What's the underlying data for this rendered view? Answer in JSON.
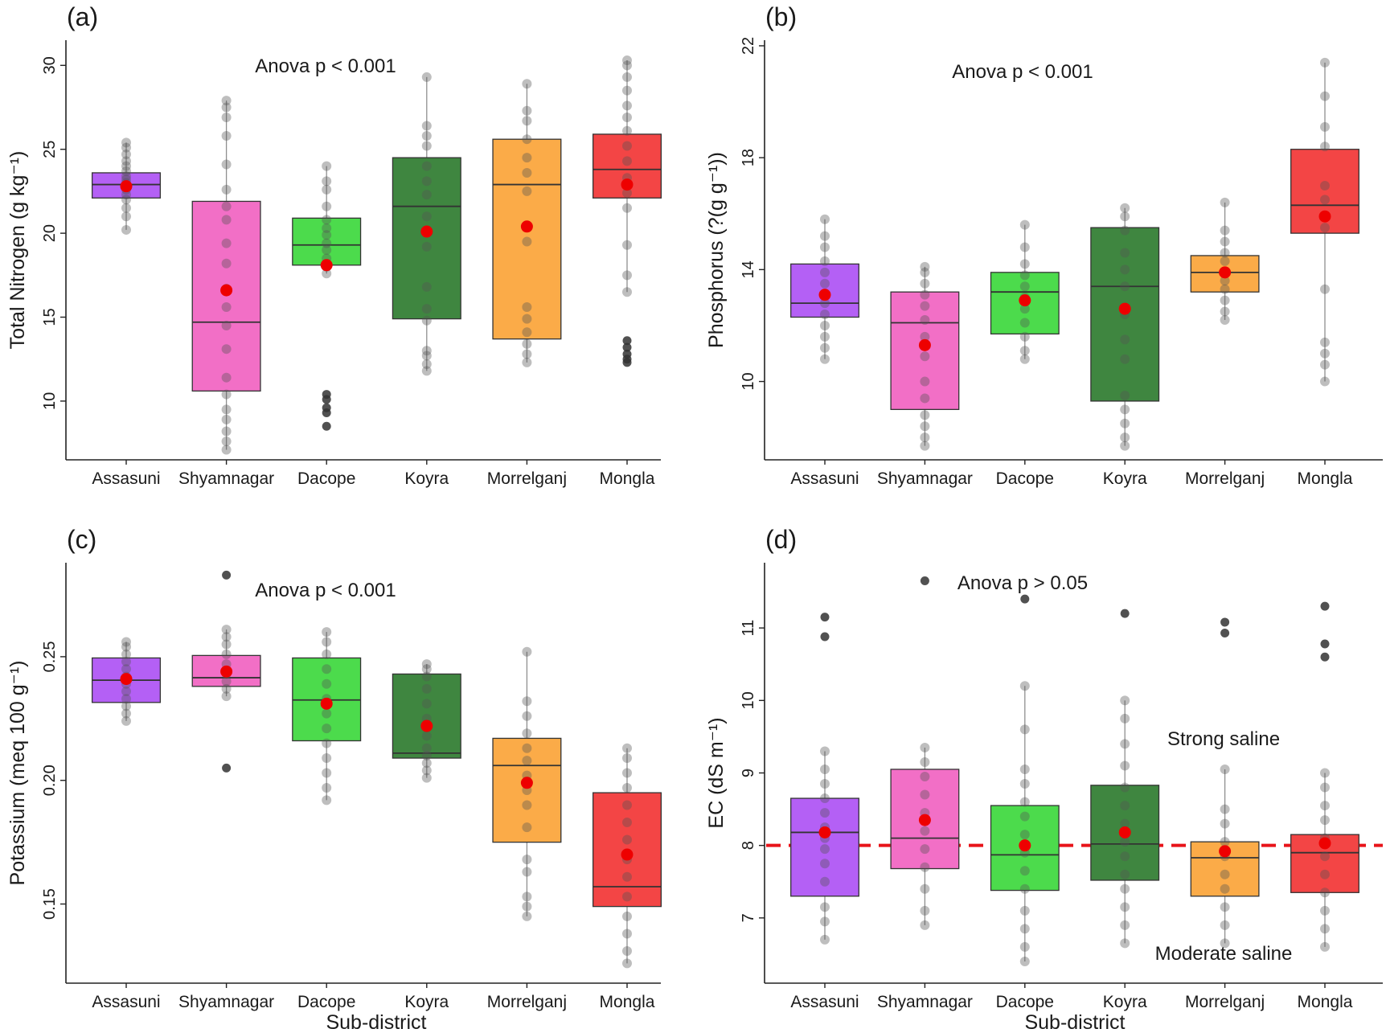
{
  "figure": {
    "xlabel": "Sub-district"
  },
  "chart_data": [
    {
      "type": "box",
      "panel_label": "(a)",
      "ylabel": "Total Nitrogen (g kg⁻¹)",
      "annotation": "Anova p < 0.001",
      "categories": [
        "Assasuni",
        "Shyamnagar",
        "Dacope",
        "Koyra",
        "Morrelganj",
        "Mongla"
      ],
      "colors": [
        "#b460f5",
        "#f26fc6",
        "#4cdb4c",
        "#3f8640",
        "#fbab48",
        "#f34545"
      ],
      "ylim": [
        6.5,
        31.5
      ],
      "yticks": [
        10,
        15,
        20,
        25,
        30
      ],
      "boxes": [
        {
          "q1": 22.1,
          "median": 22.9,
          "q3": 23.6,
          "whisker_low": 20.2,
          "whisker_high": 25.4,
          "mean": 22.8
        },
        {
          "q1": 10.6,
          "median": 14.7,
          "q3": 21.9,
          "whisker_low": 7.1,
          "whisker_high": 27.9,
          "mean": 16.6
        },
        {
          "q1": 18.1,
          "median": 19.3,
          "q3": 20.9,
          "whisker_low": 17.6,
          "whisker_high": 24.0,
          "mean": 18.1
        },
        {
          "q1": 14.9,
          "median": 21.6,
          "q3": 24.5,
          "whisker_low": 11.8,
          "whisker_high": 29.3,
          "mean": 20.1
        },
        {
          "q1": 13.7,
          "median": 22.9,
          "q3": 25.6,
          "whisker_low": 12.3,
          "whisker_high": 28.9,
          "mean": 20.4
        },
        {
          "q1": 22.1,
          "median": 23.8,
          "q3": 25.9,
          "whisker_low": 16.5,
          "whisker_high": 30.3,
          "mean": 22.9
        }
      ],
      "outliers": [
        [],
        [],
        [
          10.4,
          10.1,
          9.6,
          9.3,
          8.5
        ],
        [],
        [],
        [
          13.6,
          13.2,
          12.8,
          12.5,
          12.3
        ]
      ],
      "points": [
        [
          20.2,
          21.0,
          21.5,
          22.0,
          22.3,
          22.6,
          22.8,
          23.0,
          23.2,
          23.4,
          23.7,
          24.0,
          24.3,
          24.7,
          25.1,
          25.4
        ],
        [
          7.1,
          7.6,
          8.2,
          8.9,
          9.5,
          10.4,
          11.4,
          13.1,
          14.5,
          15.6,
          16.7,
          18.2,
          19.4,
          20.8,
          21.6,
          22.6,
          24.1,
          25.8,
          26.9,
          27.5,
          27.9
        ],
        [
          17.6,
          18.0,
          18.5,
          19.0,
          19.4,
          19.9,
          20.3,
          20.8,
          21.6,
          22.6,
          23.1,
          24.0
        ],
        [
          11.8,
          12.2,
          12.7,
          13.0,
          14.8,
          15.5,
          16.8,
          19.2,
          21.0,
          22.3,
          23.1,
          24.0,
          25.2,
          25.8,
          26.4,
          29.3
        ],
        [
          12.3,
          12.8,
          13.4,
          14.1,
          14.9,
          15.6,
          19.5,
          22.5,
          23.6,
          24.5,
          25.6,
          26.7,
          27.3,
          28.9
        ],
        [
          16.5,
          17.5,
          19.3,
          21.5,
          22.4,
          23.3,
          24.3,
          25.2,
          26.1,
          26.9,
          27.6,
          28.5,
          29.3,
          30.0,
          30.3
        ]
      ],
      "legend": "none"
    },
    {
      "type": "box",
      "panel_label": "(b)",
      "ylabel": "Phosphorus (?(g g⁻¹))",
      "annotation": "Anova p < 0.001",
      "categories": [
        "Assasuni",
        "Shyamnagar",
        "Dacope",
        "Koyra",
        "Morrelganj",
        "Mongla"
      ],
      "colors": [
        "#b460f5",
        "#f26fc6",
        "#4cdb4c",
        "#3f8640",
        "#fbab48",
        "#f34545"
      ],
      "ylim": [
        7.2,
        22.2
      ],
      "yticks": [
        10,
        14,
        18,
        22
      ],
      "boxes": [
        {
          "q1": 12.3,
          "median": 12.8,
          "q3": 14.2,
          "whisker_low": 10.8,
          "whisker_high": 15.8,
          "mean": 13.1
        },
        {
          "q1": 9.0,
          "median": 12.1,
          "q3": 13.2,
          "whisker_low": 7.7,
          "whisker_high": 14.1,
          "mean": 11.3
        },
        {
          "q1": 11.7,
          "median": 13.2,
          "q3": 13.9,
          "whisker_low": 10.8,
          "whisker_high": 15.6,
          "mean": 12.9
        },
        {
          "q1": 9.3,
          "median": 13.4,
          "q3": 15.5,
          "whisker_low": 7.7,
          "whisker_high": 16.2,
          "mean": 12.6
        },
        {
          "q1": 13.2,
          "median": 13.9,
          "q3": 14.5,
          "whisker_low": 12.2,
          "whisker_high": 16.4,
          "mean": 13.9
        },
        {
          "q1": 15.3,
          "median": 16.3,
          "q3": 18.3,
          "whisker_low": 10.0,
          "whisker_high": 21.4,
          "mean": 15.9
        }
      ],
      "outliers": [
        [],
        [],
        [],
        [],
        [],
        []
      ],
      "points": [
        [
          10.8,
          11.2,
          11.6,
          12.0,
          12.4,
          12.8,
          13.1,
          13.5,
          13.9,
          14.3,
          14.8,
          15.2,
          15.8
        ],
        [
          7.7,
          8.0,
          8.4,
          8.8,
          9.4,
          10.0,
          10.9,
          11.6,
          12.2,
          12.7,
          13.1,
          13.5,
          13.9,
          14.1
        ],
        [
          10.8,
          11.1,
          11.6,
          12.1,
          12.6,
          13.0,
          13.4,
          13.8,
          14.2,
          14.8,
          15.6
        ],
        [
          7.7,
          8.0,
          8.5,
          9.0,
          9.5,
          10.8,
          11.5,
          12.4,
          13.4,
          14.0,
          14.6,
          15.4,
          15.9,
          16.2
        ],
        [
          12.2,
          12.5,
          12.9,
          13.3,
          13.6,
          13.9,
          14.3,
          14.6,
          15.0,
          15.4,
          16.4
        ],
        [
          10.0,
          10.6,
          11.0,
          11.4,
          13.3,
          15.5,
          16.5,
          17.0,
          18.4,
          19.1,
          20.2,
          21.4
        ]
      ],
      "legend": "none"
    },
    {
      "type": "box",
      "panel_label": "(c)",
      "ylabel": "Potassium (meq 100 g⁻¹)",
      "annotation": "Anova p < 0.001",
      "categories": [
        "Assasuni",
        "Shyamnagar",
        "Dacope",
        "Koyra",
        "Morrelganj",
        "Mongla"
      ],
      "colors": [
        "#b460f5",
        "#f26fc6",
        "#4cdb4c",
        "#3f8640",
        "#fbab48",
        "#f34545"
      ],
      "ylim": [
        0.118,
        0.288
      ],
      "yticks": [
        0.15,
        0.2,
        0.25
      ],
      "ytick_labels": [
        "0.15",
        "0.20",
        "0.25"
      ],
      "boxes": [
        {
          "q1": 0.2315,
          "median": 0.2405,
          "q3": 0.2495,
          "whisker_low": 0.224,
          "whisker_high": 0.256,
          "mean": 0.241
        },
        {
          "q1": 0.238,
          "median": 0.2415,
          "q3": 0.2505,
          "whisker_low": 0.234,
          "whisker_high": 0.261,
          "mean": 0.244
        },
        {
          "q1": 0.216,
          "median": 0.2325,
          "q3": 0.2495,
          "whisker_low": 0.192,
          "whisker_high": 0.26,
          "mean": 0.231
        },
        {
          "q1": 0.209,
          "median": 0.211,
          "q3": 0.243,
          "whisker_low": 0.201,
          "whisker_high": 0.247,
          "mean": 0.222
        },
        {
          "q1": 0.175,
          "median": 0.206,
          "q3": 0.217,
          "whisker_low": 0.145,
          "whisker_high": 0.252,
          "mean": 0.199
        },
        {
          "q1": 0.149,
          "median": 0.157,
          "q3": 0.195,
          "whisker_low": 0.126,
          "whisker_high": 0.213,
          "mean": 0.17
        }
      ],
      "outliers": [
        [],
        [
          0.283,
          0.205
        ],
        [],
        [],
        [],
        []
      ],
      "points": [
        [
          0.224,
          0.227,
          0.23,
          0.233,
          0.236,
          0.239,
          0.242,
          0.245,
          0.248,
          0.251,
          0.254,
          0.256
        ],
        [
          0.234,
          0.237,
          0.24,
          0.243,
          0.247,
          0.251,
          0.255,
          0.258,
          0.261
        ],
        [
          0.192,
          0.197,
          0.203,
          0.209,
          0.215,
          0.221,
          0.227,
          0.233,
          0.239,
          0.245,
          0.251,
          0.256,
          0.26
        ],
        [
          0.201,
          0.204,
          0.207,
          0.21,
          0.213,
          0.218,
          0.225,
          0.231,
          0.237,
          0.242,
          0.245,
          0.247
        ],
        [
          0.145,
          0.149,
          0.153,
          0.163,
          0.168,
          0.181,
          0.19,
          0.196,
          0.202,
          0.208,
          0.213,
          0.219,
          0.226,
          0.232,
          0.252
        ],
        [
          0.126,
          0.131,
          0.138,
          0.145,
          0.153,
          0.161,
          0.168,
          0.176,
          0.183,
          0.19,
          0.197,
          0.203,
          0.209,
          0.213
        ]
      ],
      "legend": "none"
    },
    {
      "type": "box",
      "panel_label": "(d)",
      "ylabel": "EC (dS m⁻¹)",
      "annotation": "Anova p > 0.05",
      "categories": [
        "Assasuni",
        "Shyamnagar",
        "Dacope",
        "Koyra",
        "Morrelganj",
        "Mongla"
      ],
      "colors": [
        "#b460f5",
        "#f26fc6",
        "#4cdb4c",
        "#3f8640",
        "#fbab48",
        "#f34545"
      ],
      "ylim": [
        6.1,
        11.9
      ],
      "yticks": [
        7,
        8,
        9,
        10,
        11
      ],
      "reference_line": {
        "y": 8,
        "color": "#e8141a",
        "style": "dashed"
      },
      "region_labels": [
        {
          "text": "Strong saline",
          "color": "#e8141a"
        },
        {
          "text": "Moderate saline",
          "color": "#1414e0"
        }
      ],
      "boxes": [
        {
          "q1": 7.3,
          "median": 8.18,
          "q3": 8.65,
          "whisker_low": 6.7,
          "whisker_high": 9.3,
          "mean": 8.18
        },
        {
          "q1": 7.68,
          "median": 8.1,
          "q3": 9.05,
          "whisker_low": 6.9,
          "whisker_high": 9.35,
          "mean": 8.35
        },
        {
          "q1": 7.38,
          "median": 7.87,
          "q3": 8.55,
          "whisker_low": 6.4,
          "whisker_high": 10.2,
          "mean": 8.0
        },
        {
          "q1": 7.52,
          "median": 8.02,
          "q3": 8.83,
          "whisker_low": 6.65,
          "whisker_high": 10.0,
          "mean": 8.18
        },
        {
          "q1": 7.3,
          "median": 7.83,
          "q3": 8.05,
          "whisker_low": 6.65,
          "whisker_high": 9.05,
          "mean": 7.92
        },
        {
          "q1": 7.35,
          "median": 7.9,
          "q3": 8.15,
          "whisker_low": 6.6,
          "whisker_high": 9.0,
          "mean": 8.03
        }
      ],
      "outliers": [
        [
          11.15,
          10.88
        ],
        [
          11.65
        ],
        [
          11.4
        ],
        [
          11.2
        ],
        [
          11.08,
          10.93
        ],
        [
          11.3,
          10.78,
          10.6
        ]
      ],
      "points": [
        [
          6.7,
          6.95,
          7.15,
          7.5,
          7.75,
          7.95,
          8.1,
          8.25,
          8.45,
          8.65,
          8.85,
          9.05,
          9.3
        ],
        [
          6.9,
          7.1,
          7.4,
          7.7,
          7.95,
          8.2,
          8.45,
          8.7,
          8.95,
          9.15,
          9.35
        ],
        [
          6.4,
          6.6,
          6.85,
          7.1,
          7.4,
          7.65,
          7.9,
          8.15,
          8.4,
          8.6,
          8.85,
          9.05,
          9.6,
          10.2
        ],
        [
          6.65,
          6.9,
          7.15,
          7.4,
          7.6,
          7.85,
          8.05,
          8.3,
          8.55,
          8.8,
          9.1,
          9.4,
          9.75,
          10.0
        ],
        [
          6.65,
          6.9,
          7.15,
          7.4,
          7.6,
          7.85,
          8.05,
          8.3,
          8.5,
          9.05
        ],
        [
          6.6,
          6.85,
          7.1,
          7.35,
          7.6,
          7.85,
          8.1,
          8.35,
          8.55,
          8.8,
          9.0
        ]
      ],
      "legend": "none"
    }
  ]
}
